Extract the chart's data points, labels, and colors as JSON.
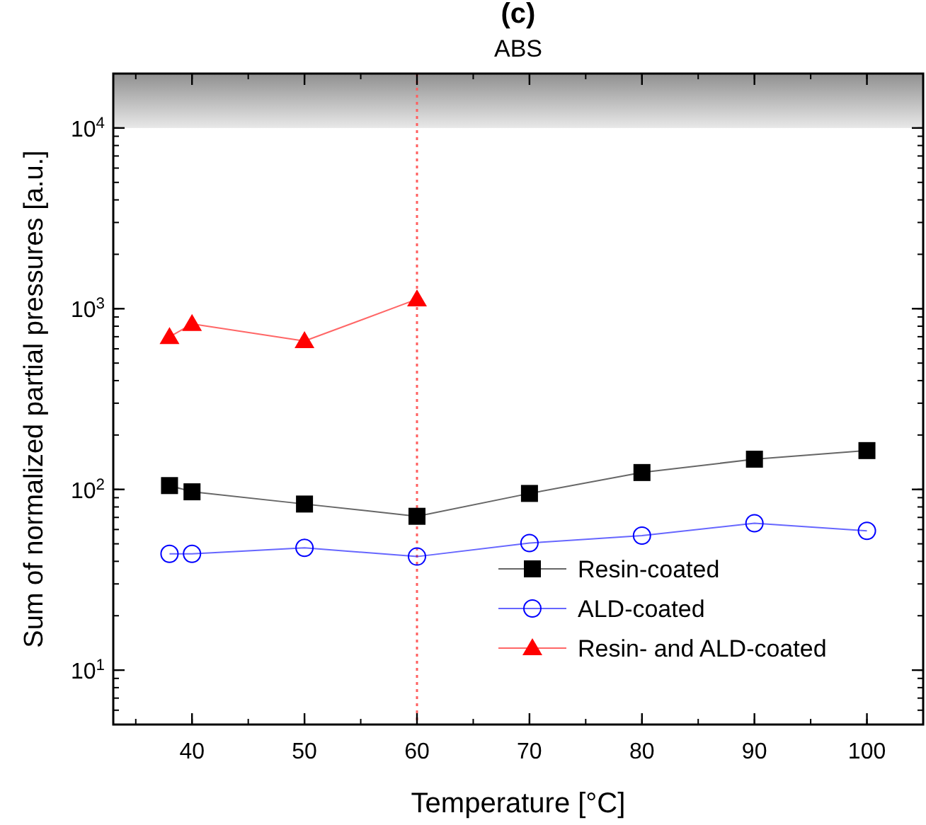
{
  "chart_data": {
    "type": "line",
    "title": "(c)",
    "subtitle": "ABS",
    "xlabel": "Temperature [°C]",
    "ylabel": "Sum of normalized partial pressures [a.u.]",
    "x": [
      38,
      40,
      50,
      60,
      70,
      80,
      90,
      100
    ],
    "series": [
      {
        "name": "Resin-coated",
        "color": "#000000",
        "marker": "square",
        "values": [
          105,
          97,
          83,
          71,
          95,
          124,
          147,
          164
        ]
      },
      {
        "name": "ALD-coated",
        "color": "#0000ff",
        "marker": "circle",
        "values": [
          44,
          44,
          47.5,
          42.5,
          50.5,
          55.5,
          65,
          59
        ]
      },
      {
        "name": "Resin- and ALD-coated",
        "color": "#ff0000",
        "marker": "triangle",
        "x": [
          38,
          40,
          50,
          60
        ],
        "values": [
          698,
          824,
          662,
          1128
        ]
      }
    ],
    "log": "y",
    "xlim": [
      33,
      105
    ],
    "xticks": [
      40,
      50,
      60,
      70,
      80,
      90,
      100
    ],
    "ylim": [
      5,
      20000
    ],
    "yticks": [
      {
        "value": 10,
        "label": "10$^{1}$"
      },
      {
        "value": 100,
        "label": "10$^{2}$"
      },
      {
        "value": 1000,
        "label": "10$^{3}$"
      },
      {
        "value": 10000,
        "label": "10$^{4}$"
      }
    ],
    "ref_lines": [
      {
        "axis": "x",
        "value": 60,
        "color": "#ff6060",
        "line_style": "dotted"
      }
    ],
    "bands": [
      {
        "axis": "y",
        "from": 10000,
        "to": 20000,
        "color": "#909090"
      }
    ],
    "legend": "bottom right",
    "grid": false
  }
}
